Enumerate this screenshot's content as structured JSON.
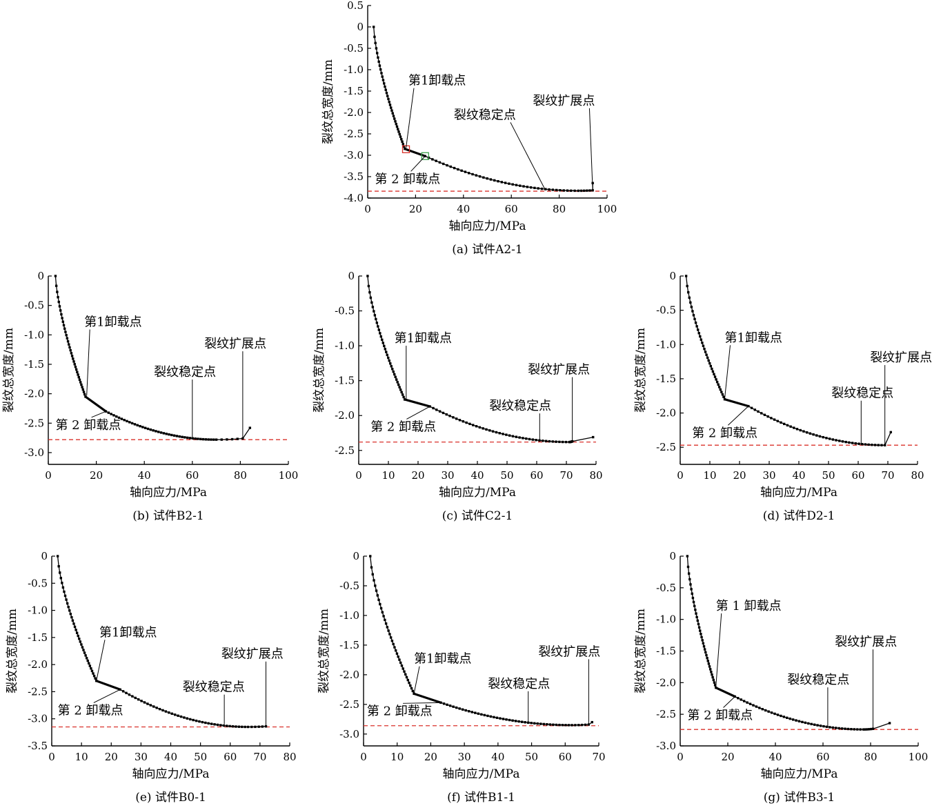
{
  "chart_data": [
    {
      "type": "line",
      "caption": "(a)  试件A2-1",
      "xlabel": "轴向应力/MPa",
      "ylabel": "裂纹总宽度/mm",
      "xlim": [
        0,
        100
      ],
      "ylim": [
        -4.0,
        0.5
      ],
      "xticks": [
        0,
        20,
        40,
        60,
        80,
        100
      ],
      "yticks": [
        0.5,
        0,
        -0.5,
        -1.0,
        -1.5,
        -2.0,
        -2.5,
        -3.0,
        -3.5,
        -4.0
      ],
      "ytick_labels": [
        "0.5",
        "0",
        "-0.5",
        "-1.0",
        "-1.5",
        "-2.0",
        "-2.5",
        "-3.0",
        "-3.5",
        "-4.0"
      ],
      "params": {
        "x0": 2.5,
        "x1": 15.5,
        "y1": -2.85,
        "xu": 24.0,
        "yu": -3.02,
        "xmin": 88.0,
        "ymin": -3.83,
        "xe": 94.0,
        "ye": -3.82,
        "xend": 94.0,
        "yend": -3.65
      },
      "ref_line_y": -3.84,
      "annotations": [
        {
          "text": "第1卸载点",
          "tx": 17,
          "ty": -1.35,
          "px": 16,
          "py": -2.83
        },
        {
          "text": "第 2 卸载点",
          "tx": 3,
          "ty": -3.65,
          "px": 24,
          "py": -3.02
        },
        {
          "text": "裂纹稳定点",
          "tx": 36,
          "ty": -2.15,
          "px": 74,
          "py": -3.79
        },
        {
          "text": "裂纹扩展点",
          "tx": 69,
          "ty": -1.82,
          "px": 94,
          "py": -3.82
        }
      ],
      "markers": [
        {
          "kind": "square-red",
          "x": 16,
          "y": -2.86
        },
        {
          "kind": "square-green",
          "x": 24,
          "y": -3.02
        }
      ]
    },
    {
      "type": "line",
      "caption": "(b)  试件B2-1",
      "xlabel": "轴向应力/MPa",
      "ylabel": "裂纹总宽度/mm",
      "xlim": [
        0,
        100
      ],
      "ylim": [
        -3.2,
        0
      ],
      "xticks": [
        0,
        20,
        40,
        60,
        80,
        100
      ],
      "yticks": [
        0,
        -0.5,
        -1.0,
        -1.5,
        -2.0,
        -2.5,
        -3.0
      ],
      "ytick_labels": [
        "0",
        "-0.5",
        "-1.0",
        "-1.5",
        "-2.0",
        "-2.5",
        "-3.0"
      ],
      "params": {
        "x0": 3.0,
        "x1": 15.5,
        "y1": -2.05,
        "xu": 24.0,
        "yu": -2.3,
        "xmin": 70.0,
        "ymin": -2.78,
        "xe": 81.0,
        "ye": -2.76,
        "xend": 84.0,
        "yend": -2.58
      },
      "ref_line_y": -2.78,
      "annotations": [
        {
          "text": "第1卸载点",
          "tx": 15,
          "ty": -0.85,
          "px": 16,
          "py": -2.03
        },
        {
          "text": "第 2 卸载点",
          "tx": 3,
          "ty": -2.6,
          "px": 24,
          "py": -2.3
        },
        {
          "text": "裂纹稳定点",
          "tx": 44,
          "ty": -1.7,
          "px": 60,
          "py": -2.76
        },
        {
          "text": "裂纹扩展点",
          "tx": 65,
          "ty": -1.22,
          "px": 81,
          "py": -2.76
        }
      ],
      "markers": []
    },
    {
      "type": "line",
      "caption": "(c)  试件C2-1",
      "xlabel": "轴向应力/MPa",
      "ylabel": "裂纹总宽度/mm",
      "xlim": [
        0,
        80
      ],
      "ylim": [
        -2.7,
        0
      ],
      "xticks": [
        0,
        10,
        20,
        30,
        40,
        50,
        60,
        70,
        80
      ],
      "yticks": [
        0,
        -0.5,
        -1.0,
        -1.5,
        -2.0,
        -2.5
      ],
      "ytick_labels": [
        "0",
        "-0.5",
        "-1.0",
        "-1.5",
        "-2.0",
        "-2.5"
      ],
      "params": {
        "x0": 3.0,
        "x1": 15.5,
        "y1": -1.77,
        "xu": 24.0,
        "yu": -1.87,
        "xmin": 71.0,
        "ymin": -2.38,
        "xe": 72.0,
        "ye": -2.37,
        "xend": 79.0,
        "yend": -2.31
      },
      "ref_line_y": -2.38,
      "annotations": [
        {
          "text": "第1卸载点",
          "tx": 12,
          "ty": -0.95,
          "px": 16,
          "py": -1.76
        },
        {
          "text": "第 2 卸载点",
          "tx": 4,
          "ty": -2.22,
          "px": 24,
          "py": -1.87
        },
        {
          "text": "裂纹稳定点",
          "tx": 44,
          "ty": -1.92,
          "px": 61,
          "py": -2.35
        },
        {
          "text": "裂纹扩展点",
          "tx": 57,
          "ty": -1.4,
          "px": 72,
          "py": -2.37
        }
      ],
      "markers": []
    },
    {
      "type": "line",
      "caption": "(d)  试件D2-1",
      "xlabel": "轴向应力/MPa",
      "ylabel": "裂纹总宽度/mm",
      "xlim": [
        0,
        80
      ],
      "ylim": [
        -2.75,
        0
      ],
      "xticks": [
        0,
        10,
        20,
        30,
        40,
        50,
        60,
        70,
        80
      ],
      "yticks": [
        0,
        -0.5,
        -1.0,
        -1.5,
        -2.0,
        -2.5
      ],
      "ytick_labels": [
        "0",
        "-0.5",
        "-1.0",
        "-1.5",
        "-2.0",
        "-2.5"
      ],
      "params": {
        "x0": 2.0,
        "x1": 15.0,
        "y1": -1.8,
        "xu": 23.0,
        "yu": -1.9,
        "xmin": 69.0,
        "ymin": -2.47,
        "xe": 69.0,
        "ye": -2.47,
        "xend": 71.0,
        "yend": -2.28
      },
      "ref_line_y": -2.47,
      "annotations": [
        {
          "text": "第1卸载点",
          "tx": 15,
          "ty": -0.96,
          "px": 15,
          "py": -1.79
        },
        {
          "text": "第 2 卸载点",
          "tx": 4,
          "ty": -2.35,
          "px": 23,
          "py": -1.9
        },
        {
          "text": "裂纹稳定点",
          "tx": 51,
          "ty": -1.77,
          "px": 61,
          "py": -2.45
        },
        {
          "text": "裂纹扩展点",
          "tx": 64,
          "ty": -1.25,
          "px": 69,
          "py": -2.47
        }
      ],
      "markers": []
    },
    {
      "type": "line",
      "caption": "(e) 试件B0-1",
      "xlabel": "轴向应力/MPa",
      "ylabel": "裂纹总宽度/mm",
      "xlim": [
        0,
        80
      ],
      "ylim": [
        -3.5,
        0
      ],
      "xticks": [
        0,
        10,
        20,
        30,
        40,
        50,
        60,
        70,
        80
      ],
      "yticks": [
        0,
        -0.5,
        -1.0,
        -1.5,
        -2.0,
        -2.5,
        -3.0,
        -3.5
      ],
      "ytick_labels": [
        "0",
        "-0.5",
        "-1.0",
        "-1.5",
        "-2.0",
        "-2.5",
        "-3.0",
        "-3.5"
      ],
      "params": {
        "x0": 2.0,
        "x1": 15.0,
        "y1": -2.3,
        "xu": 23.0,
        "yu": -2.46,
        "xmin": 66.0,
        "ymin": -3.15,
        "xe": 72.0,
        "ye": -3.14,
        "xend": 72.0,
        "yend": -3.14
      },
      "ref_line_y": -3.15,
      "annotations": [
        {
          "text": "第1卸载点",
          "tx": 16,
          "ty": -1.48,
          "px": 15,
          "py": -2.3
        },
        {
          "text": "第 2 卸载点",
          "tx": 2,
          "ty": -2.92,
          "px": 23,
          "py": -2.46
        },
        {
          "text": "裂纹稳定点",
          "tx": 44,
          "ty": -2.49,
          "px": 58,
          "py": -3.1
        },
        {
          "text": "裂纹扩展点",
          "tx": 57,
          "ty": -1.88,
          "px": 72,
          "py": -3.14
        }
      ],
      "markers": []
    },
    {
      "type": "line",
      "caption": "(f) 试件B1-1",
      "xlabel": "轴向应力/MPa",
      "ylabel": "裂纹总宽度/mm",
      "xlim": [
        0,
        70
      ],
      "ylim": [
        -3.2,
        0
      ],
      "xticks": [
        0,
        10,
        20,
        30,
        40,
        50,
        60,
        70
      ],
      "yticks": [
        0,
        -0.5,
        -1.0,
        -1.5,
        -2.0,
        -2.5,
        -3.0
      ],
      "ytick_labels": [
        "0",
        "-0.5",
        "-1.0",
        "-1.5",
        "-2.0",
        "-2.5",
        "-3.0"
      ],
      "params": {
        "x0": 2.0,
        "x1": 15.0,
        "y1": -2.32,
        "xu": 23.0,
        "yu": -2.47,
        "xmin": 62.0,
        "ymin": -2.85,
        "xe": 67.0,
        "ye": -2.84,
        "xend": 68.0,
        "yend": -2.8
      },
      "ref_line_y": -2.86,
      "annotations": [
        {
          "text": "第1卸载点",
          "tx": 15,
          "ty": -1.8,
          "px": 15,
          "py": -2.32
        },
        {
          "text": "第 2 卸载点",
          "tx": 1,
          "ty": -2.68,
          "px": 23,
          "py": -2.47
        },
        {
          "text": "裂纹稳定点",
          "tx": 37,
          "ty": -2.22,
          "px": 49,
          "py": -2.79
        },
        {
          "text": "裂纹扩展点",
          "tx": 52,
          "ty": -1.68,
          "px": 67,
          "py": -2.84
        }
      ],
      "markers": []
    },
    {
      "type": "line",
      "caption": "(g)  试件B3-1",
      "xlabel": "轴向应力/MPa",
      "ylabel": "裂纹总宽度/mm",
      "xlim": [
        0,
        100
      ],
      "ylim": [
        -3.0,
        0
      ],
      "xticks": [
        0,
        20,
        40,
        60,
        80,
        100
      ],
      "yticks": [
        0,
        -0.5,
        -1.0,
        -1.5,
        -2.0,
        -2.5,
        -3.0
      ],
      "ytick_labels": [
        "0",
        "-0.5",
        "-1.0",
        "-1.5",
        "-2.0",
        "-2.5",
        "-3.0"
      ],
      "params": {
        "x0": 3.0,
        "x1": 15.0,
        "y1": -2.08,
        "xu": 23.0,
        "yu": -2.22,
        "xmin": 77.0,
        "ymin": -2.74,
        "xe": 81.0,
        "ye": -2.73,
        "xend": 88.0,
        "yend": -2.64
      },
      "ref_line_y": -2.74,
      "annotations": [
        {
          "text": "第 1 卸载点",
          "tx": 15,
          "ty": -0.85,
          "px": 15,
          "py": -2.06
        },
        {
          "text": "第 2 卸载点",
          "tx": 3,
          "ty": -2.58,
          "px": 23,
          "py": -2.22
        },
        {
          "text": "裂纹稳定点",
          "tx": 45,
          "ty": -2.02,
          "px": 62,
          "py": -2.7
        },
        {
          "text": "裂纹扩展点",
          "tx": 65,
          "ty": -1.42,
          "px": 81,
          "py": -2.73
        }
      ],
      "markers": []
    }
  ]
}
